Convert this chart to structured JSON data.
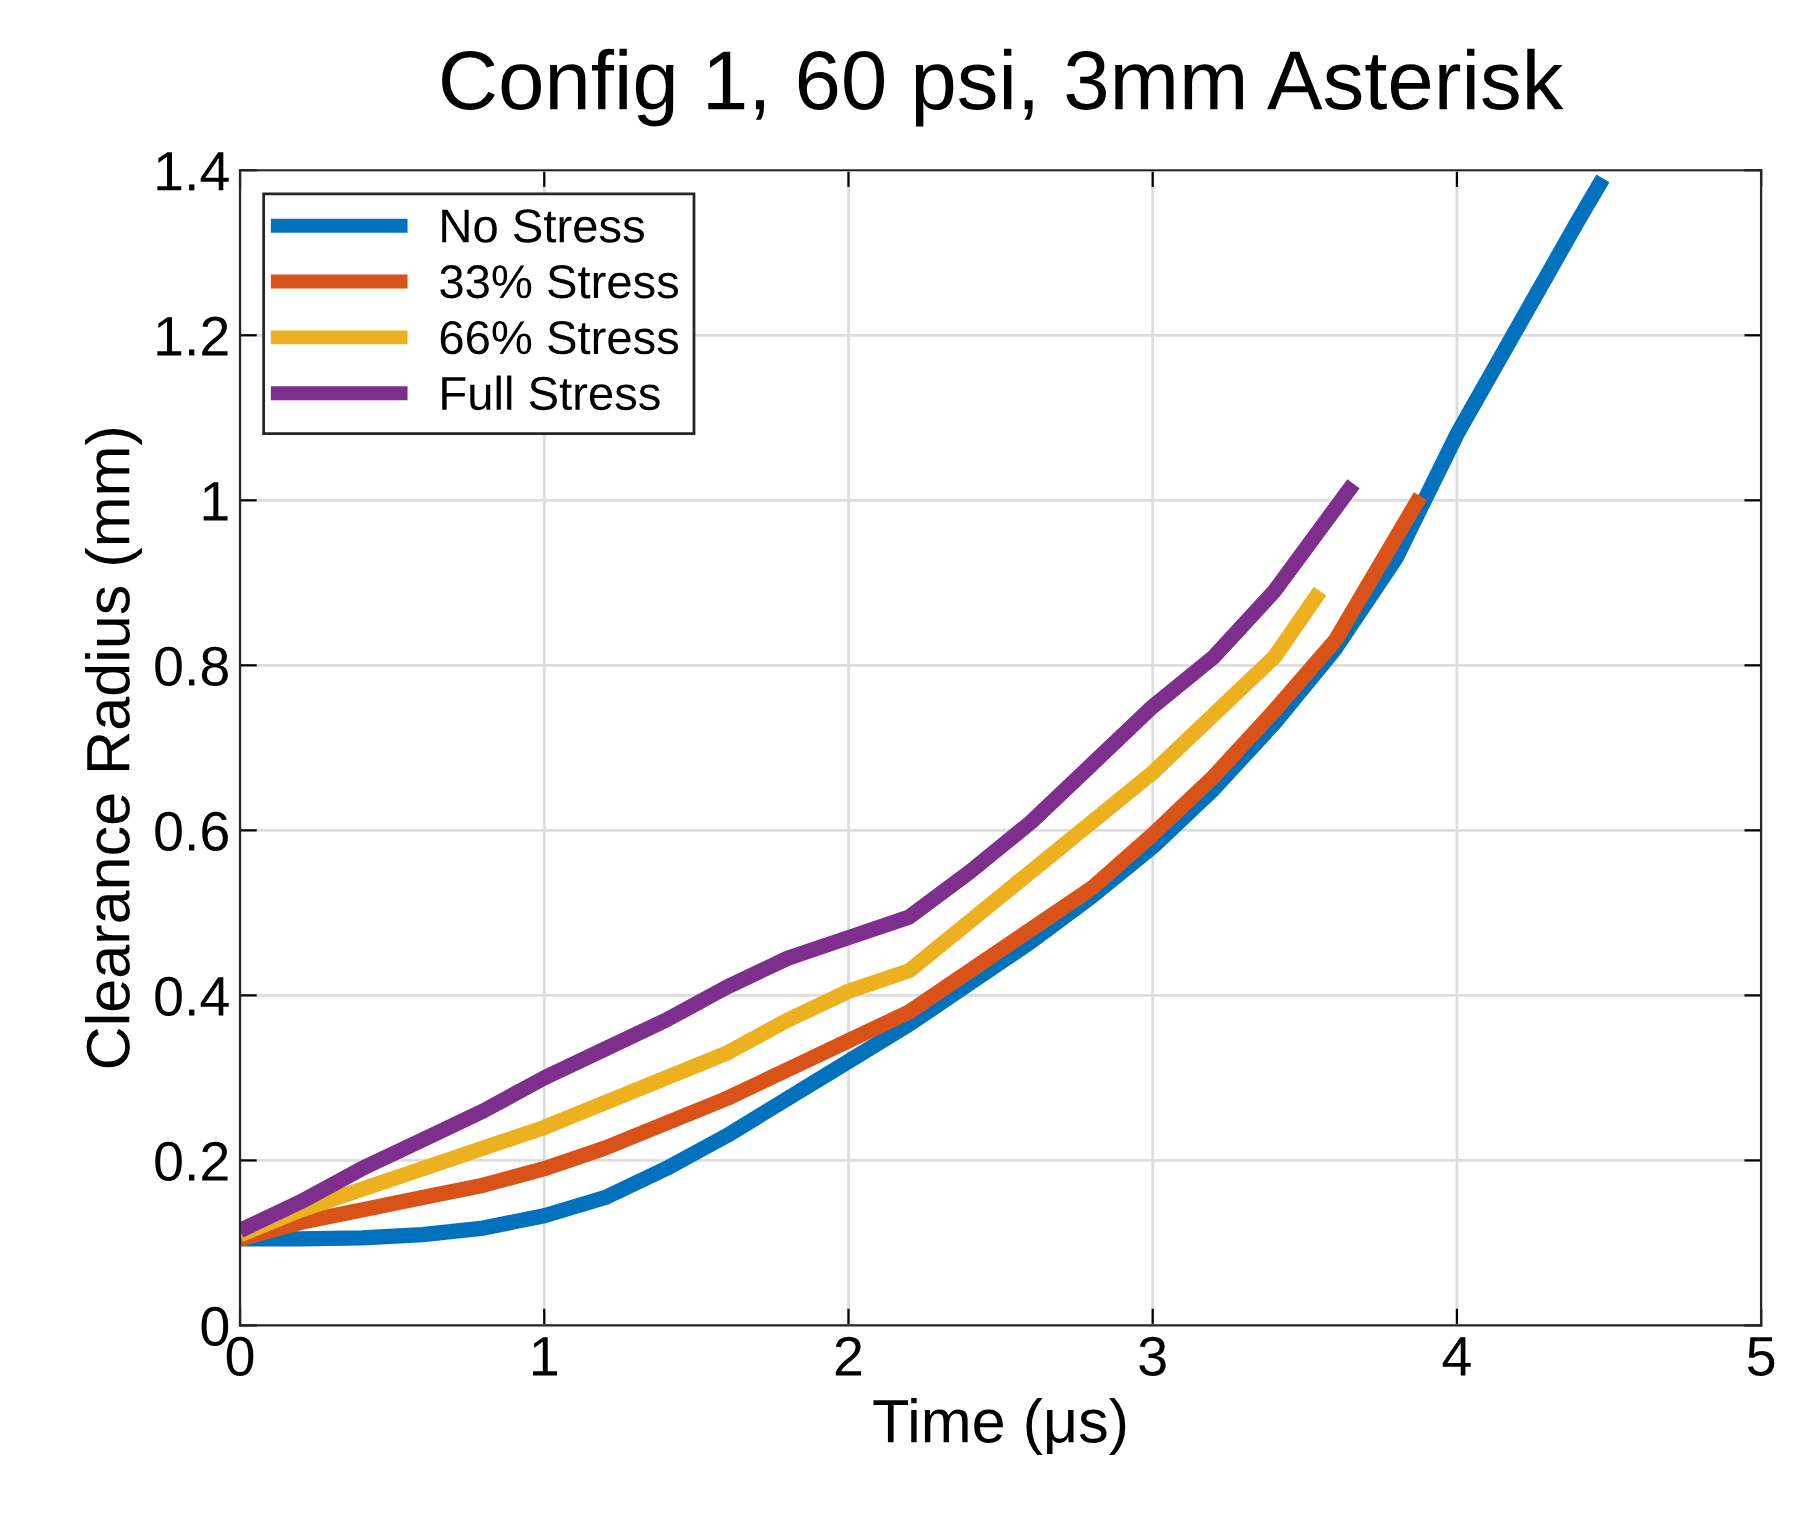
{
  "chart_data": {
    "type": "line",
    "title": "Config 1, 60 psi, 3mm Asterisk",
    "xlabel": "Time (μs)",
    "ylabel": "Clearance Radius (mm)",
    "xlim": [
      0,
      5
    ],
    "xticks": [
      0,
      1,
      2,
      3,
      4,
      5
    ],
    "ylim": [
      0,
      1.4
    ],
    "yticks": [
      0,
      0.2,
      0.4,
      0.6,
      0.8,
      1,
      1.2,
      1.4
    ],
    "grid": true,
    "legend": "top left",
    "marker": "none",
    "line_style": "solid",
    "series": [
      {
        "name": "No Stress",
        "color": "#0072bd",
        "x": [
          0,
          0.2,
          0.4,
          0.6,
          0.8,
          1.0,
          1.2,
          1.4,
          1.6,
          1.8,
          2.0,
          2.2,
          2.4,
          2.6,
          2.8,
          3.0,
          3.2,
          3.4,
          3.6,
          3.8,
          4.0,
          4.2,
          4.4,
          4.48
        ],
        "values": [
          0.105,
          0.105,
          0.106,
          0.11,
          0.118,
          0.133,
          0.155,
          0.19,
          0.23,
          0.275,
          0.32,
          0.365,
          0.415,
          0.465,
          0.52,
          0.58,
          0.65,
          0.73,
          0.82,
          0.93,
          1.08,
          1.21,
          1.34,
          1.39
        ]
      },
      {
        "name": "33% Stress",
        "color": "#d95319",
        "x": [
          0,
          0.2,
          0.4,
          0.6,
          0.8,
          1.0,
          1.2,
          1.4,
          1.6,
          1.8,
          2.0,
          2.2,
          2.4,
          2.6,
          2.8,
          3.0,
          3.2,
          3.4,
          3.6,
          3.88
        ],
        "values": [
          0.105,
          0.125,
          0.14,
          0.155,
          0.17,
          0.19,
          0.215,
          0.245,
          0.275,
          0.31,
          0.345,
          0.38,
          0.43,
          0.48,
          0.53,
          0.595,
          0.665,
          0.745,
          0.83,
          1.005
        ]
      },
      {
        "name": "66% Stress",
        "color": "#edb120",
        "x": [
          0,
          0.2,
          0.4,
          0.6,
          0.8,
          1.0,
          1.2,
          1.4,
          1.6,
          1.8,
          2.0,
          2.2,
          2.4,
          2.6,
          2.8,
          3.0,
          3.2,
          3.4,
          3.55
        ],
        "values": [
          0.11,
          0.14,
          0.165,
          0.19,
          0.215,
          0.24,
          0.27,
          0.3,
          0.33,
          0.37,
          0.405,
          0.43,
          0.49,
          0.55,
          0.61,
          0.67,
          0.74,
          0.81,
          0.89
        ]
      },
      {
        "name": "Full Stress",
        "color": "#7e2f8e",
        "x": [
          0,
          0.2,
          0.4,
          0.6,
          0.8,
          1.0,
          1.2,
          1.4,
          1.6,
          1.8,
          2.0,
          2.2,
          2.4,
          2.6,
          2.8,
          3.0,
          3.2,
          3.4,
          3.66
        ],
        "values": [
          0.115,
          0.15,
          0.19,
          0.225,
          0.26,
          0.3,
          0.335,
          0.37,
          0.41,
          0.445,
          0.47,
          0.495,
          0.55,
          0.61,
          0.68,
          0.75,
          0.81,
          0.89,
          1.02
        ]
      }
    ]
  }
}
